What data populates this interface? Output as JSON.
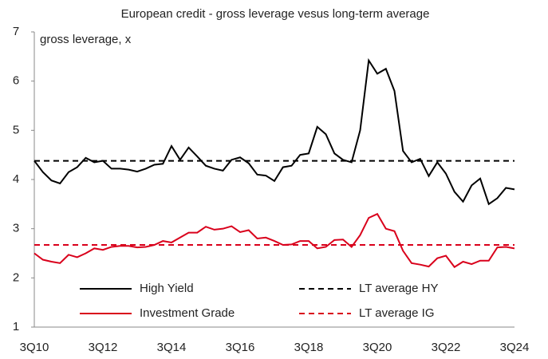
{
  "chart_data": {
    "type": "line",
    "title": "European credit - gross leverage vesus long-term average",
    "y_label": "gross leverage, x",
    "categories": [
      "3Q10",
      null,
      null,
      null,
      null,
      null,
      null,
      null,
      "3Q12",
      null,
      null,
      null,
      null,
      null,
      null,
      null,
      "3Q14",
      null,
      null,
      null,
      null,
      null,
      null,
      null,
      "3Q16",
      null,
      null,
      null,
      null,
      null,
      null,
      null,
      "3Q18",
      null,
      null,
      null,
      null,
      null,
      null,
      null,
      "3Q20",
      null,
      null,
      null,
      null,
      null,
      null,
      null,
      "3Q22",
      null,
      null,
      null,
      null,
      null,
      null,
      null,
      "3Q24"
    ],
    "ylim": [
      1,
      7
    ],
    "yticks": [
      1,
      2,
      3,
      4,
      5,
      6,
      7
    ],
    "grid": false,
    "legend": "bottom",
    "series": [
      {
        "name": "High Yield",
        "color": "#000000",
        "dashed": false,
        "values": [
          4.38,
          4.15,
          3.98,
          3.92,
          4.15,
          4.25,
          4.44,
          4.35,
          4.38,
          4.22,
          4.22,
          4.2,
          4.16,
          4.22,
          4.3,
          4.32,
          4.68,
          4.4,
          4.65,
          4.47,
          4.28,
          4.22,
          4.18,
          4.4,
          4.45,
          4.33,
          4.1,
          4.08,
          3.97,
          4.25,
          4.28,
          4.5,
          4.53,
          5.07,
          4.92,
          4.53,
          4.4,
          4.35,
          5.0,
          6.42,
          6.15,
          6.25,
          5.8,
          4.58,
          4.35,
          4.42,
          4.07,
          4.35,
          4.12,
          3.75,
          3.55,
          3.88,
          4.02,
          3.5,
          3.62,
          3.83,
          3.8
        ]
      },
      {
        "name": "LT average HY",
        "color": "#000000",
        "dashed": true,
        "values": [
          4.38,
          4.38,
          4.38,
          4.38,
          4.38,
          4.38,
          4.38,
          4.38,
          4.38,
          4.38,
          4.38,
          4.38,
          4.38,
          4.38,
          4.38,
          4.38,
          4.38,
          4.38,
          4.38,
          4.38,
          4.38,
          4.38,
          4.38,
          4.38,
          4.38,
          4.38,
          4.38,
          4.38,
          4.38,
          4.38,
          4.38,
          4.38,
          4.38,
          4.38,
          4.38,
          4.38,
          4.38,
          4.38,
          4.38,
          4.38,
          4.38,
          4.38,
          4.38,
          4.38,
          4.38,
          4.38,
          4.38,
          4.38,
          4.38,
          4.38,
          4.38,
          4.38,
          4.38,
          4.38,
          4.38,
          4.38,
          4.38
        ]
      },
      {
        "name": "Investment Grade",
        "color": "#d9001b",
        "dashed": false,
        "values": [
          2.5,
          2.37,
          2.33,
          2.3,
          2.47,
          2.42,
          2.5,
          2.6,
          2.57,
          2.63,
          2.65,
          2.65,
          2.62,
          2.63,
          2.67,
          2.75,
          2.72,
          2.82,
          2.92,
          2.92,
          3.04,
          2.98,
          3.0,
          3.05,
          2.93,
          2.97,
          2.8,
          2.82,
          2.75,
          2.67,
          2.68,
          2.75,
          2.75,
          2.6,
          2.63,
          2.77,
          2.78,
          2.63,
          2.87,
          3.22,
          3.3,
          3.0,
          2.95,
          2.55,
          2.3,
          2.27,
          2.23,
          2.4,
          2.45,
          2.22,
          2.33,
          2.28,
          2.35,
          2.35,
          2.62,
          2.63,
          2.6
        ]
      },
      {
        "name": "LT average IG",
        "color": "#d9001b",
        "dashed": true,
        "values": [
          2.67,
          2.67,
          2.67,
          2.67,
          2.67,
          2.67,
          2.67,
          2.67,
          2.67,
          2.67,
          2.67,
          2.67,
          2.67,
          2.67,
          2.67,
          2.67,
          2.67,
          2.67,
          2.67,
          2.67,
          2.67,
          2.67,
          2.67,
          2.67,
          2.67,
          2.67,
          2.67,
          2.67,
          2.67,
          2.67,
          2.67,
          2.67,
          2.67,
          2.67,
          2.67,
          2.67,
          2.67,
          2.67,
          2.67,
          2.67,
          2.67,
          2.67,
          2.67,
          2.67,
          2.67,
          2.67,
          2.67,
          2.67,
          2.67,
          2.67,
          2.67,
          2.67,
          2.67,
          2.67,
          2.67,
          2.67,
          2.67
        ]
      }
    ]
  }
}
